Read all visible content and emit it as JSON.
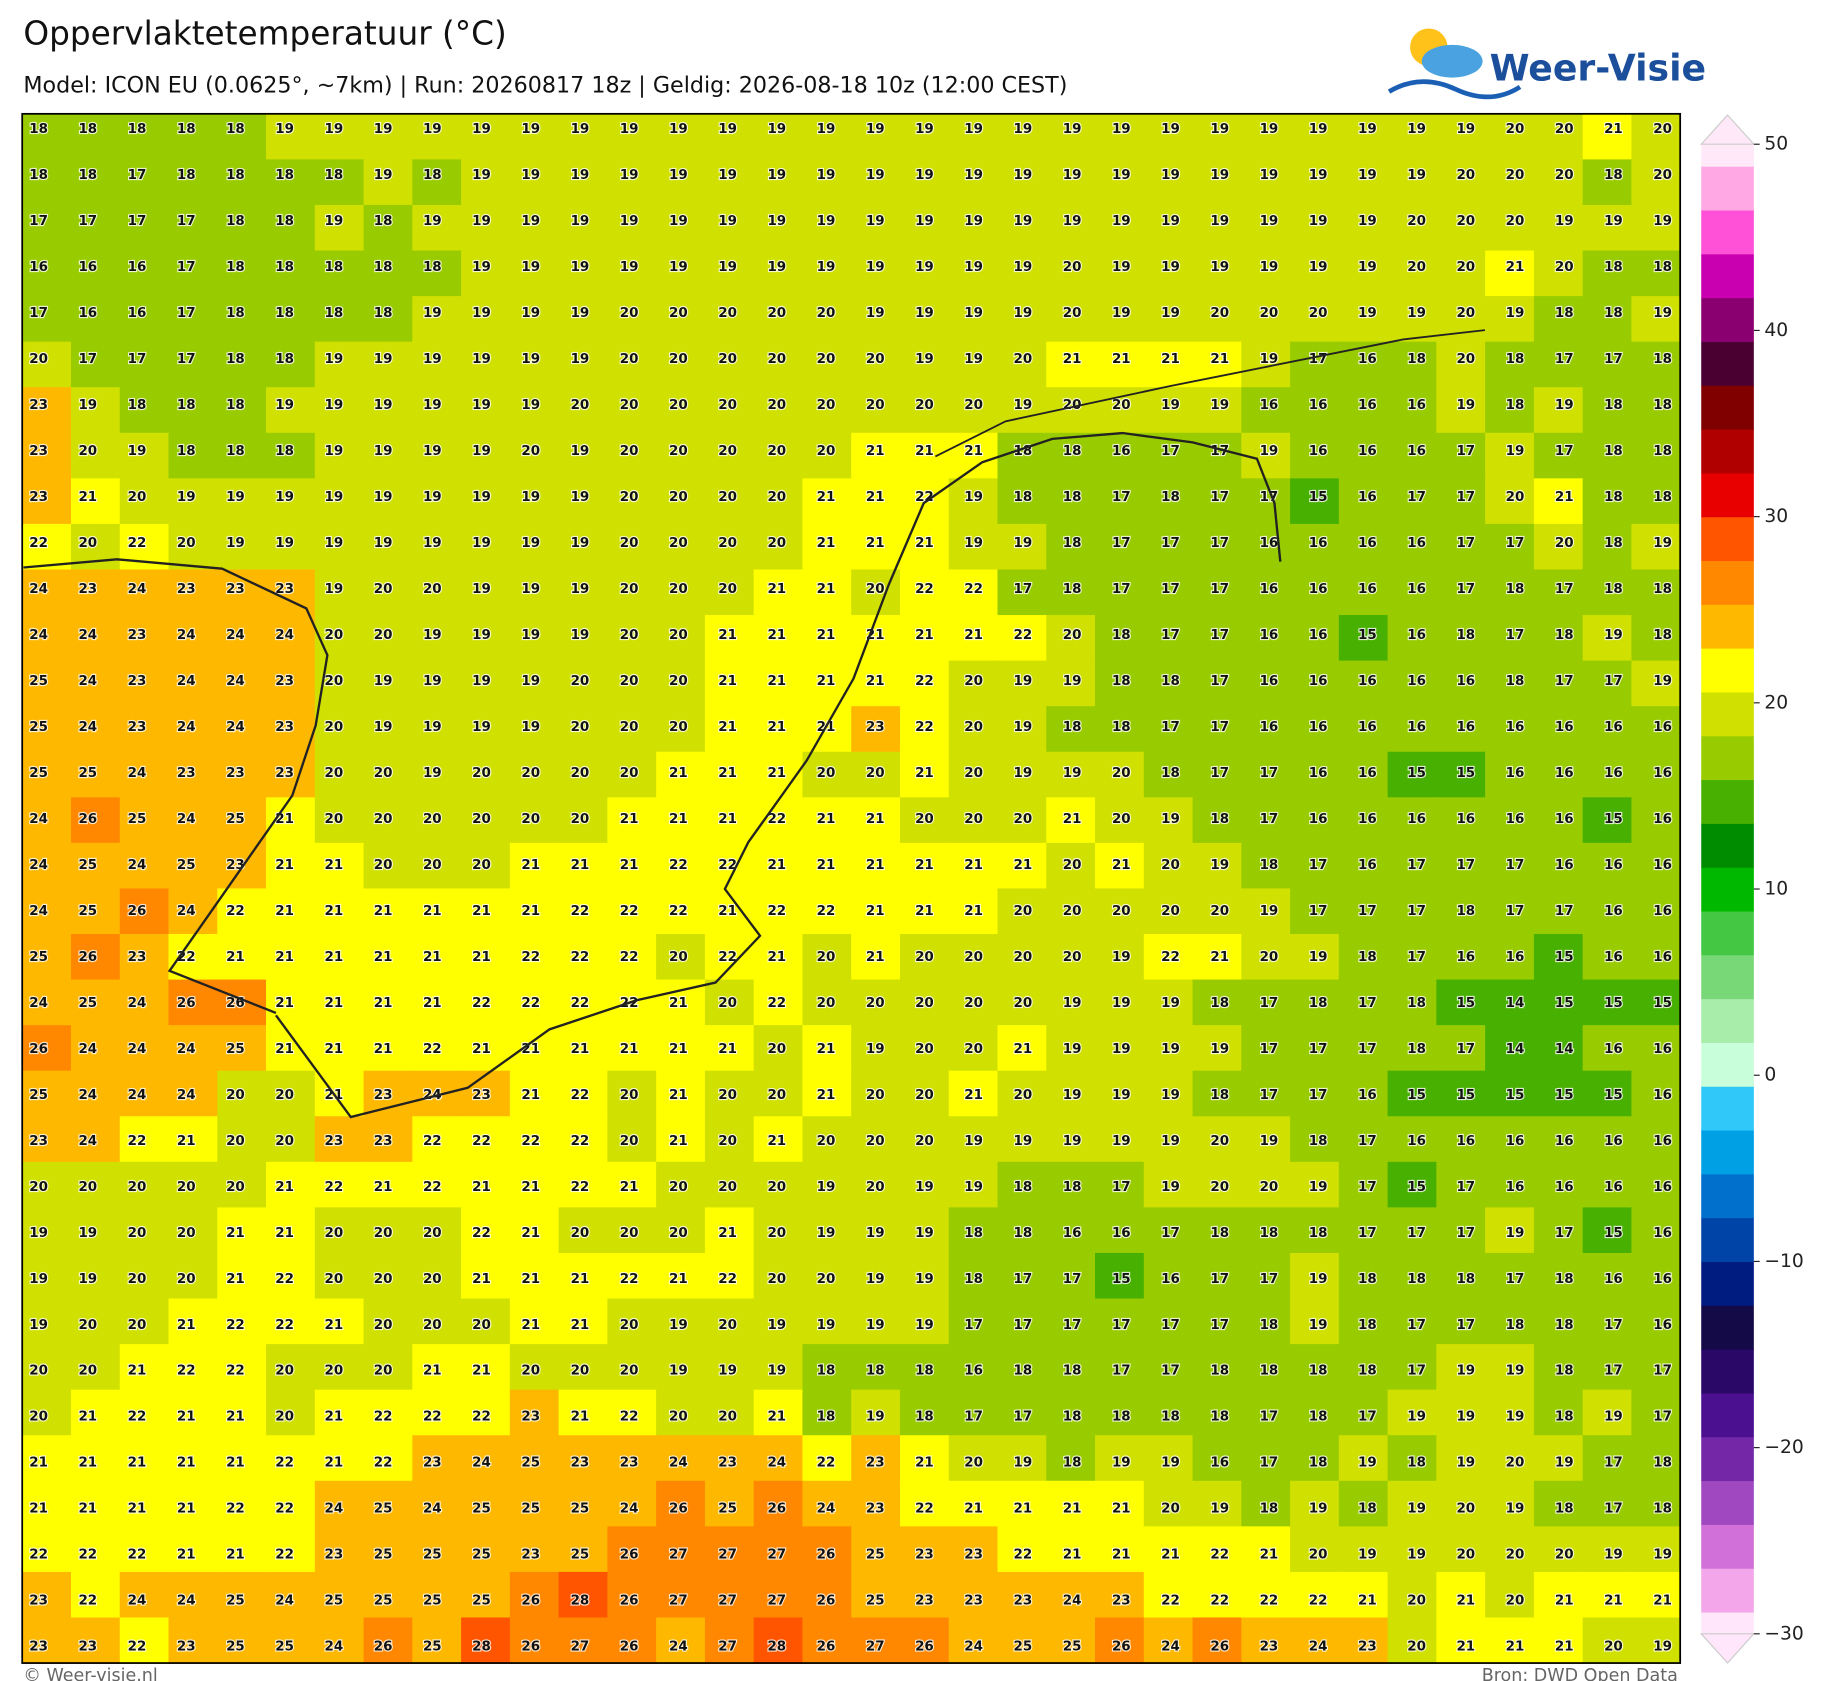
{
  "header": {
    "title": "Oppervlaktetemperatuur (°C)",
    "subtitle": "Model: ICON EU (0.0625°, ~7km)  |  Run: 20260817 18z  |  Geldig: 2026-08-18 10z (12:00 CEST)",
    "logo": "Weer-Visie"
  },
  "grid": {
    "rows": [
      [
        18,
        18,
        18,
        18,
        18,
        19,
        19,
        19,
        19,
        19,
        19,
        19,
        19,
        19,
        19,
        19,
        19,
        19,
        19,
        19,
        19,
        19,
        19,
        19,
        19,
        19,
        19,
        19,
        19,
        19,
        20,
        20,
        21,
        20
      ],
      [
        18,
        18,
        17,
        18,
        18,
        18,
        18,
        19,
        18,
        19,
        19,
        19,
        19,
        19,
        19,
        19,
        19,
        19,
        19,
        19,
        19,
        19,
        19,
        19,
        19,
        19,
        19,
        19,
        19,
        20,
        20,
        20,
        18,
        20
      ],
      [
        17,
        17,
        17,
        17,
        18,
        18,
        19,
        18,
        19,
        19,
        19,
        19,
        19,
        19,
        19,
        19,
        19,
        19,
        19,
        19,
        19,
        19,
        19,
        19,
        19,
        19,
        19,
        19,
        20,
        20,
        20,
        19,
        19,
        19
      ],
      [
        16,
        16,
        16,
        17,
        18,
        18,
        18,
        18,
        18,
        19,
        19,
        19,
        19,
        19,
        19,
        19,
        19,
        19,
        19,
        19,
        19,
        20,
        19,
        19,
        19,
        19,
        19,
        19,
        20,
        20,
        21,
        20,
        18,
        18
      ],
      [
        17,
        16,
        16,
        17,
        18,
        18,
        18,
        18,
        19,
        19,
        19,
        19,
        20,
        20,
        20,
        20,
        20,
        19,
        19,
        19,
        19,
        20,
        19,
        19,
        20,
        20,
        20,
        19,
        19,
        20,
        19,
        18,
        18,
        19
      ],
      [
        20,
        17,
        17,
        17,
        18,
        18,
        19,
        19,
        19,
        19,
        19,
        19,
        20,
        20,
        20,
        20,
        20,
        20,
        19,
        19,
        20,
        21,
        21,
        21,
        21,
        19,
        17,
        16,
        18,
        20,
        18,
        17,
        17,
        18
      ],
      [
        23,
        19,
        18,
        18,
        18,
        19,
        19,
        19,
        19,
        19,
        19,
        20,
        20,
        20,
        20,
        20,
        20,
        20,
        20,
        20,
        19,
        20,
        20,
        19,
        19,
        16,
        16,
        16,
        16,
        19,
        18,
        19,
        18,
        18
      ],
      [
        23,
        20,
        19,
        18,
        18,
        18,
        19,
        19,
        19,
        19,
        20,
        19,
        20,
        20,
        20,
        20,
        20,
        21,
        21,
        21,
        18,
        18,
        16,
        17,
        17,
        19,
        16,
        16,
        16,
        17,
        19,
        17,
        18,
        18
      ],
      [
        23,
        21,
        20,
        19,
        19,
        19,
        19,
        19,
        19,
        19,
        19,
        19,
        20,
        20,
        20,
        20,
        21,
        21,
        22,
        19,
        18,
        18,
        17,
        18,
        17,
        17,
        15,
        16,
        17,
        17,
        20,
        21,
        18,
        18
      ],
      [
        22,
        20,
        22,
        20,
        19,
        19,
        19,
        19,
        19,
        19,
        19,
        19,
        20,
        20,
        20,
        20,
        21,
        21,
        21,
        19,
        19,
        18,
        17,
        17,
        17,
        16,
        16,
        16,
        16,
        17,
        17,
        20,
        18,
        19
      ],
      [
        24,
        23,
        24,
        23,
        23,
        23,
        19,
        20,
        20,
        19,
        19,
        19,
        20,
        20,
        20,
        21,
        21,
        20,
        22,
        22,
        17,
        18,
        17,
        17,
        17,
        16,
        16,
        16,
        16,
        17,
        18,
        17,
        18,
        18
      ],
      [
        24,
        24,
        23,
        24,
        24,
        24,
        20,
        20,
        19,
        19,
        19,
        19,
        20,
        20,
        21,
        21,
        21,
        21,
        21,
        21,
        22,
        20,
        18,
        17,
        17,
        16,
        16,
        15,
        16,
        18,
        17,
        18,
        19,
        18
      ],
      [
        25,
        24,
        23,
        24,
        24,
        23,
        20,
        19,
        19,
        19,
        19,
        20,
        20,
        20,
        21,
        21,
        21,
        21,
        22,
        20,
        19,
        19,
        18,
        18,
        17,
        16,
        16,
        16,
        16,
        16,
        18,
        17,
        17,
        19
      ],
      [
        25,
        24,
        23,
        24,
        24,
        23,
        20,
        19,
        19,
        19,
        19,
        20,
        20,
        20,
        21,
        21,
        21,
        23,
        22,
        20,
        19,
        18,
        18,
        17,
        17,
        16,
        16,
        16,
        16,
        16,
        16,
        16,
        16,
        16
      ],
      [
        25,
        25,
        24,
        23,
        23,
        23,
        20,
        20,
        19,
        20,
        20,
        20,
        20,
        21,
        21,
        21,
        20,
        20,
        21,
        20,
        19,
        19,
        20,
        18,
        17,
        17,
        16,
        16,
        15,
        15,
        16,
        16,
        16,
        16
      ],
      [
        24,
        26,
        25,
        24,
        25,
        21,
        20,
        20,
        20,
        20,
        20,
        20,
        21,
        21,
        21,
        22,
        21,
        21,
        20,
        20,
        20,
        21,
        20,
        19,
        18,
        17,
        16,
        16,
        16,
        16,
        16,
        16,
        15,
        16
      ],
      [
        24,
        25,
        24,
        25,
        23,
        21,
        21,
        20,
        20,
        20,
        21,
        21,
        21,
        22,
        22,
        21,
        21,
        21,
        21,
        21,
        21,
        20,
        21,
        20,
        19,
        18,
        17,
        16,
        17,
        17,
        17,
        16,
        16,
        16
      ],
      [
        24,
        25,
        26,
        24,
        22,
        21,
        21,
        21,
        21,
        21,
        21,
        22,
        22,
        22,
        21,
        22,
        22,
        21,
        21,
        21,
        20,
        20,
        20,
        20,
        20,
        19,
        17,
        17,
        17,
        18,
        17,
        17,
        16,
        16
      ],
      [
        25,
        26,
        23,
        22,
        21,
        21,
        21,
        21,
        21,
        21,
        22,
        22,
        22,
        20,
        22,
        21,
        20,
        21,
        20,
        20,
        20,
        20,
        19,
        22,
        21,
        20,
        19,
        18,
        17,
        16,
        16,
        15,
        16,
        16
      ],
      [
        24,
        25,
        24,
        26,
        26,
        21,
        21,
        21,
        21,
        22,
        22,
        22,
        22,
        21,
        20,
        22,
        20,
        20,
        20,
        20,
        20,
        19,
        19,
        19,
        18,
        17,
        18,
        17,
        18,
        15,
        14,
        15,
        15,
        15
      ],
      [
        26,
        24,
        24,
        24,
        25,
        21,
        21,
        21,
        22,
        21,
        21,
        21,
        21,
        21,
        21,
        20,
        21,
        19,
        20,
        20,
        21,
        19,
        19,
        19,
        19,
        17,
        17,
        17,
        18,
        17,
        14,
        14,
        16,
        16
      ],
      [
        25,
        24,
        24,
        24,
        20,
        20,
        21,
        23,
        24,
        23,
        21,
        22,
        20,
        21,
        20,
        20,
        21,
        20,
        20,
        21,
        20,
        19,
        19,
        19,
        18,
        17,
        17,
        16,
        15,
        15,
        15,
        15,
        15,
        16
      ],
      [
        23,
        24,
        22,
        21,
        20,
        20,
        23,
        23,
        22,
        22,
        22,
        22,
        20,
        21,
        20,
        21,
        20,
        20,
        20,
        19,
        19,
        19,
        19,
        19,
        20,
        19,
        18,
        17,
        16,
        16,
        16,
        16,
        16,
        16
      ],
      [
        20,
        20,
        20,
        20,
        20,
        21,
        22,
        21,
        22,
        21,
        21,
        22,
        21,
        20,
        20,
        20,
        19,
        20,
        19,
        19,
        18,
        18,
        17,
        19,
        20,
        20,
        19,
        17,
        15,
        17,
        16,
        16,
        16,
        16
      ],
      [
        19,
        19,
        20,
        20,
        21,
        21,
        20,
        20,
        20,
        22,
        21,
        20,
        20,
        20,
        21,
        20,
        19,
        19,
        19,
        18,
        18,
        16,
        16,
        17,
        18,
        18,
        18,
        17,
        17,
        17,
        19,
        17,
        15,
        16
      ],
      [
        19,
        19,
        20,
        20,
        21,
        22,
        20,
        20,
        20,
        21,
        21,
        21,
        22,
        21,
        22,
        20,
        20,
        19,
        19,
        18,
        17,
        17,
        15,
        16,
        17,
        17,
        19,
        18,
        18,
        18,
        17,
        18,
        16,
        16
      ],
      [
        19,
        20,
        20,
        21,
        22,
        22,
        21,
        20,
        20,
        20,
        21,
        21,
        20,
        19,
        20,
        19,
        19,
        19,
        19,
        17,
        17,
        17,
        17,
        17,
        17,
        18,
        19,
        18,
        17,
        17,
        18,
        18,
        17,
        16
      ],
      [
        20,
        20,
        21,
        22,
        22,
        20,
        20,
        20,
        21,
        21,
        20,
        20,
        20,
        19,
        19,
        19,
        18,
        18,
        18,
        16,
        18,
        18,
        17,
        17,
        18,
        18,
        18,
        18,
        17,
        19,
        19,
        18,
        17,
        17
      ],
      [
        20,
        21,
        22,
        21,
        21,
        20,
        21,
        22,
        22,
        22,
        23,
        21,
        22,
        20,
        20,
        21,
        18,
        19,
        18,
        17,
        17,
        18,
        18,
        18,
        18,
        17,
        18,
        17,
        19,
        19,
        19,
        18,
        19,
        17
      ],
      [
        21,
        21,
        21,
        21,
        21,
        22,
        21,
        22,
        23,
        24,
        25,
        23,
        23,
        24,
        23,
        24,
        22,
        23,
        21,
        20,
        19,
        18,
        19,
        19,
        16,
        17,
        18,
        19,
        18,
        19,
        20,
        19,
        17,
        18
      ],
      [
        21,
        21,
        21,
        21,
        22,
        22,
        24,
        25,
        24,
        25,
        25,
        25,
        24,
        26,
        25,
        26,
        24,
        23,
        22,
        21,
        21,
        21,
        21,
        20,
        19,
        18,
        19,
        18,
        19,
        20,
        19,
        18,
        17,
        18
      ],
      [
        22,
        22,
        22,
        21,
        21,
        22,
        23,
        25,
        25,
        25,
        23,
        25,
        26,
        27,
        27,
        27,
        26,
        25,
        23,
        23,
        22,
        21,
        21,
        21,
        22,
        21,
        20,
        19,
        19,
        20,
        20,
        20,
        19,
        19
      ],
      [
        23,
        22,
        24,
        24,
        25,
        24,
        25,
        25,
        25,
        25,
        26,
        28,
        26,
        27,
        27,
        27,
        26,
        25,
        23,
        23,
        23,
        24,
        23,
        22,
        22,
        22,
        22,
        21,
        20,
        21,
        20,
        21,
        21,
        21
      ],
      [
        23,
        23,
        22,
        23,
        25,
        25,
        24,
        26,
        25,
        28,
        26,
        27,
        26,
        24,
        27,
        28,
        26,
        27,
        26,
        24,
        25,
        25,
        26,
        24,
        26,
        23,
        24,
        23,
        20,
        21,
        21,
        21,
        20,
        19
      ]
    ]
  },
  "colorbar": {
    "min": -30,
    "max": 50,
    "ticks": [
      50,
      40,
      30,
      20,
      10,
      0,
      {
        "value": -10,
        "label": "−10"
      },
      {
        "value": -20,
        "label": "−20"
      },
      {
        "value": -30,
        "label": "−30"
      }
    ],
    "colors": [
      "#ffe6fa",
      "#f4a6ea",
      "#d070d8",
      "#a048c0",
      "#7428a8",
      "#4a1090",
      "#2a0868",
      "#140a48",
      "#001c80",
      "#0044a8",
      "#0070cc",
      "#00a0e4",
      "#30c8f8",
      "#c8ffda",
      "#a8eeaa",
      "#78d878",
      "#44c844",
      "#00b800",
      "#008c00",
      "#48b000",
      "#98cc00",
      "#d0e000",
      "#ffff00",
      "#ffb800",
      "#ff8800",
      "#ff5500",
      "#e80000",
      "#b00000",
      "#800000",
      "#4a0030",
      "#8a0070",
      "#c800b0",
      "#ff50d8",
      "#ffa8e4",
      "#ffe8f8"
    ]
  },
  "footer": {
    "copyright": "© Weer-visie.nl",
    "source": "Bron: DWD Open Data"
  }
}
